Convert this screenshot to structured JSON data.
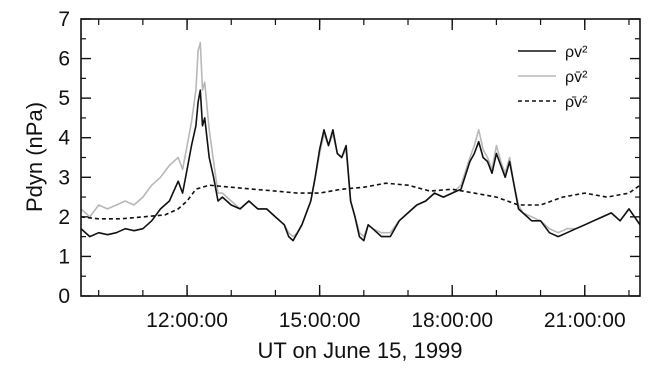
{
  "chart_data": {
    "type": "line",
    "title": "",
    "xlabel": "UT on June 15, 1999",
    "ylabel": "Pdyn (nPa)",
    "x_unit": "UT hour",
    "xlim": [
      9.6,
      22.25
    ],
    "ylim": [
      0,
      7
    ],
    "y_ticks": [
      0,
      1,
      2,
      3,
      4,
      5,
      6,
      7
    ],
    "x_ticks": [
      {
        "value": 12,
        "label": "12:00:00"
      },
      {
        "value": 15,
        "label": "15:00:00"
      },
      {
        "value": 18,
        "label": "18:00:00"
      },
      {
        "value": 21,
        "label": "21:00:00"
      }
    ],
    "grid": false,
    "legend_position": "top-right",
    "series": [
      {
        "name": "ρv²",
        "color": "#111111",
        "style": "solid",
        "x": [
          9.6,
          9.8,
          10.0,
          10.2,
          10.4,
          10.6,
          10.8,
          11.0,
          11.2,
          11.4,
          11.6,
          11.8,
          11.9,
          12.0,
          12.1,
          12.2,
          12.25,
          12.3,
          12.35,
          12.4,
          12.5,
          12.6,
          12.7,
          12.8,
          13.0,
          13.2,
          13.4,
          13.6,
          13.8,
          14.0,
          14.2,
          14.3,
          14.4,
          14.5,
          14.6,
          14.8,
          14.9,
          15.0,
          15.1,
          15.2,
          15.3,
          15.4,
          15.5,
          15.6,
          15.7,
          15.8,
          15.9,
          16.0,
          16.1,
          16.2,
          16.4,
          16.6,
          16.8,
          17.0,
          17.2,
          17.4,
          17.6,
          17.8,
          18.0,
          18.2,
          18.4,
          18.5,
          18.6,
          18.7,
          18.8,
          18.9,
          19.0,
          19.1,
          19.2,
          19.3,
          19.4,
          19.5,
          19.6,
          19.8,
          20.0,
          20.2,
          20.4,
          20.6,
          20.8,
          21.0,
          21.2,
          21.4,
          21.6,
          21.8,
          22.0,
          22.25
        ],
        "y": [
          1.7,
          1.5,
          1.6,
          1.55,
          1.6,
          1.7,
          1.65,
          1.7,
          1.9,
          2.2,
          2.4,
          2.9,
          2.6,
          3.2,
          3.8,
          4.3,
          4.9,
          5.2,
          4.3,
          4.5,
          3.5,
          3.0,
          2.4,
          2.5,
          2.3,
          2.2,
          2.4,
          2.2,
          2.2,
          2.0,
          1.8,
          1.5,
          1.4,
          1.6,
          1.8,
          2.4,
          3.0,
          3.7,
          4.2,
          3.8,
          4.2,
          3.6,
          3.5,
          3.8,
          2.4,
          2.0,
          1.5,
          1.4,
          1.8,
          1.7,
          1.5,
          1.5,
          1.9,
          2.1,
          2.3,
          2.4,
          2.6,
          2.5,
          2.6,
          2.7,
          3.4,
          3.6,
          3.9,
          3.5,
          3.4,
          3.1,
          3.6,
          3.3,
          3.0,
          3.4,
          2.8,
          2.2,
          2.1,
          1.9,
          1.9,
          1.6,
          1.5,
          1.6,
          1.7,
          1.8,
          1.9,
          2.0,
          2.1,
          1.9,
          2.2,
          1.8
        ]
      },
      {
        "name": "ρv̄²",
        "color": "#b8b8b8",
        "style": "solid",
        "x": [
          9.6,
          9.8,
          10.0,
          10.2,
          10.4,
          10.6,
          10.8,
          11.0,
          11.2,
          11.4,
          11.6,
          11.8,
          11.9,
          12.0,
          12.1,
          12.2,
          12.25,
          12.3,
          12.35,
          12.4,
          12.5,
          12.6,
          12.7,
          12.8,
          13.0,
          13.2,
          13.4,
          13.6,
          13.8,
          14.0,
          14.2,
          14.3,
          14.4,
          14.5,
          14.6,
          14.8,
          14.9,
          15.0,
          15.1,
          15.2,
          15.3,
          15.4,
          15.5,
          15.6,
          15.7,
          15.8,
          15.9,
          16.0,
          16.1,
          16.2,
          16.4,
          16.6,
          16.8,
          17.0,
          17.2,
          17.4,
          17.6,
          17.8,
          18.0,
          18.2,
          18.4,
          18.5,
          18.6,
          18.7,
          18.8,
          18.9,
          19.0,
          19.1,
          19.2,
          19.3,
          19.4,
          19.5,
          19.6,
          19.8,
          20.0,
          20.2,
          20.4,
          20.6,
          20.8,
          21.0,
          21.2,
          21.4,
          21.6,
          21.8,
          22.0,
          22.25
        ],
        "y": [
          2.2,
          2.0,
          2.3,
          2.2,
          2.3,
          2.4,
          2.3,
          2.5,
          2.8,
          3.0,
          3.3,
          3.5,
          3.2,
          3.8,
          4.4,
          5.2,
          6.2,
          6.4,
          5.2,
          5.4,
          4.2,
          3.4,
          2.6,
          2.6,
          2.4,
          2.2,
          2.4,
          2.2,
          2.2,
          2.0,
          1.8,
          1.6,
          1.5,
          1.6,
          1.8,
          2.4,
          3.0,
          3.6,
          4.1,
          3.8,
          4.1,
          3.6,
          3.5,
          3.7,
          2.4,
          2.0,
          1.6,
          1.5,
          1.8,
          1.7,
          1.6,
          1.6,
          1.9,
          2.1,
          2.3,
          2.4,
          2.6,
          2.5,
          2.6,
          2.8,
          3.5,
          3.8,
          4.2,
          3.7,
          3.5,
          3.2,
          3.8,
          3.4,
          3.1,
          3.5,
          2.8,
          2.3,
          2.1,
          2.0,
          1.9,
          1.7,
          1.6,
          1.7,
          1.7,
          1.8,
          1.9,
          2.0,
          2.1,
          1.9,
          2.2,
          1.8
        ]
      },
      {
        "name": "ρ̄v²",
        "color": "#111111",
        "style": "dashed",
        "x": [
          9.6,
          10.0,
          10.5,
          11.0,
          11.5,
          11.8,
          12.0,
          12.2,
          12.5,
          13.0,
          13.5,
          14.0,
          14.5,
          15.0,
          15.5,
          16.0,
          16.5,
          17.0,
          17.5,
          18.0,
          18.5,
          19.0,
          19.5,
          20.0,
          20.5,
          21.0,
          21.5,
          22.0,
          22.25
        ],
        "y": [
          2.0,
          1.95,
          1.95,
          2.0,
          2.05,
          2.2,
          2.4,
          2.7,
          2.8,
          2.75,
          2.7,
          2.65,
          2.6,
          2.6,
          2.7,
          2.75,
          2.85,
          2.8,
          2.65,
          2.7,
          2.6,
          2.5,
          2.3,
          2.3,
          2.5,
          2.6,
          2.5,
          2.6,
          2.8
        ]
      }
    ]
  }
}
